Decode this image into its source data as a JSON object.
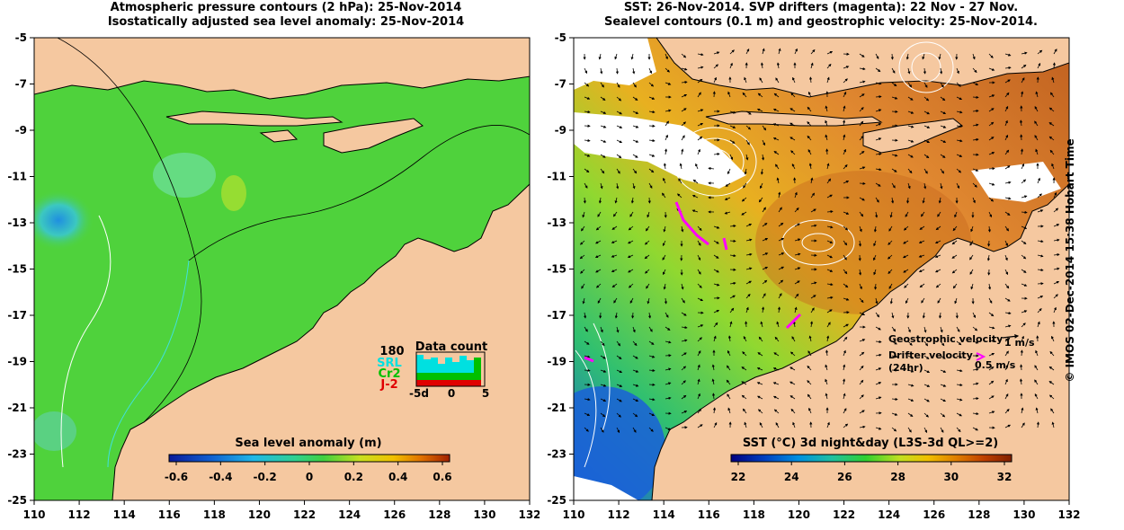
{
  "left_panel": {
    "title_line1": "Atmospheric pressure contours (2 hPa): 25-Nov-2014",
    "title_line2": "Isostatically adjusted sea level anomaly: 25-Nov-2014",
    "colorbar": {
      "label": "Sea level anomaly (m)",
      "ticks": [
        "-0.6",
        "-0.4",
        "-0.2",
        "0",
        "0.2",
        "0.4",
        "0.6"
      ],
      "colors": [
        "#0a1a9a",
        "#1060d0",
        "#20b8e8",
        "#30d090",
        "#40d040",
        "#c8e020",
        "#f0c000",
        "#e07000",
        "#a02000"
      ]
    },
    "data_count": {
      "title": "Data count",
      "max_label": "180",
      "xticks": [
        "-5d",
        "0",
        "5"
      ],
      "legend": [
        {
          "label": "SRL",
          "color": "#00e0e0"
        },
        {
          "label": "Cr2",
          "color": "#00c000"
        },
        {
          "label": "J-2",
          "color": "#e00000"
        }
      ]
    }
  },
  "right_panel": {
    "title_line1": "SST: 26-Nov-2014. SVP drifters (magenta): 22 Nov - 27 Nov.",
    "title_line2": "Sealevel contours (0.1 m) and geostrophic velocity: 25-Nov-2014.",
    "legend": {
      "geo_label": "Geostrophic velocity",
      "geo_scale": "1 m/s",
      "drifter_label_1": "Drifter velocity",
      "drifter_label_2": "(24hr)",
      "drifter_scale": "0.5 m/s"
    },
    "colorbar": {
      "label": "SST (°C) 3d night&day (L3S-3d QL>=2)",
      "ticks": [
        "22",
        "24",
        "26",
        "28",
        "30",
        "32"
      ],
      "colors": [
        "#000080",
        "#0040c0",
        "#0090e0",
        "#20c0a0",
        "#30d030",
        "#c0e020",
        "#f0c000",
        "#e08000",
        "#c04000",
        "#802000"
      ]
    }
  },
  "axes": {
    "x_ticks": [
      "110",
      "112",
      "114",
      "116",
      "118",
      "120",
      "122",
      "124",
      "126",
      "128",
      "130",
      "132"
    ],
    "y_ticks": [
      "-5",
      "-7",
      "-9",
      "-11",
      "-13",
      "-15",
      "-17",
      "-19",
      "-21",
      "-23",
      "-25"
    ]
  },
  "colors": {
    "land": "#f5c8a0",
    "sla_sea": "#4fd23c",
    "sst_sea": "#e08a30",
    "cloud": "#ffffff"
  },
  "credit": "© IMOS 02-Dec-2014 15:38 Hobart Time"
}
